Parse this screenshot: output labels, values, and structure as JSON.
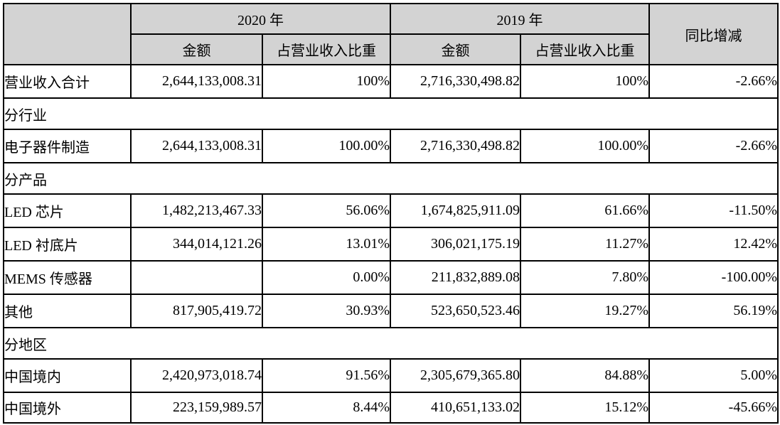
{
  "colors": {
    "header_bg": "#d3d3d3",
    "section_bg": "#d3d3d3",
    "highlight_bg": "#d3d3d3",
    "cell_bg": "#ffffff",
    "border": "#000000",
    "text": "#000000"
  },
  "table": {
    "header": {
      "year_2020": "2020 年",
      "year_2019": "2019 年",
      "yoy": "同比增减",
      "amount_2020": "金额",
      "share_2020": "占营业收入比重",
      "amount_2019": "金额",
      "share_2019": "占营业收入比重"
    },
    "rows": [
      {
        "label": "营业收入合计",
        "cells": [
          "2,644,133,008.31",
          "100%",
          "2,716,330,498.82",
          "100%",
          "-2.66%"
        ]
      },
      {
        "section": "分行业"
      },
      {
        "label": "电子器件制造",
        "cells": [
          "2,644,133,008.31",
          "100.00%",
          "2,716,330,498.82",
          "100.00%",
          "-2.66%"
        ]
      },
      {
        "section": "分产品"
      },
      {
        "label": "LED 芯片",
        "cells": [
          "1,482,213,467.33",
          "56.06%",
          "1,674,825,911.09",
          "61.66%",
          "-11.50%"
        ]
      },
      {
        "label": "LED 衬底片",
        "cells": [
          "344,014,121.26",
          "13.01%",
          "306,021,175.19",
          "11.27%",
          "12.42%"
        ]
      },
      {
        "label": "MEMS 传感器",
        "cells": [
          "",
          "0.00%",
          "211,832,889.08",
          "7.80%",
          "-100.00%"
        ]
      },
      {
        "label": "其他",
        "cells": [
          "817,905,419.72",
          "30.93%",
          "523,650,523.46",
          "19.27%",
          "56.19%"
        ]
      },
      {
        "section": "分地区"
      },
      {
        "label": "中国境内",
        "cells": [
          "2,420,973,018.74",
          "91.56%",
          "2,305,679,365.80",
          "84.88%",
          "5.00%"
        ]
      },
      {
        "label": "中国境外",
        "cells": [
          "223,159,989.57",
          "8.44%",
          "410,651,133.02",
          "15.12%",
          "-45.66%"
        ]
      }
    ]
  }
}
